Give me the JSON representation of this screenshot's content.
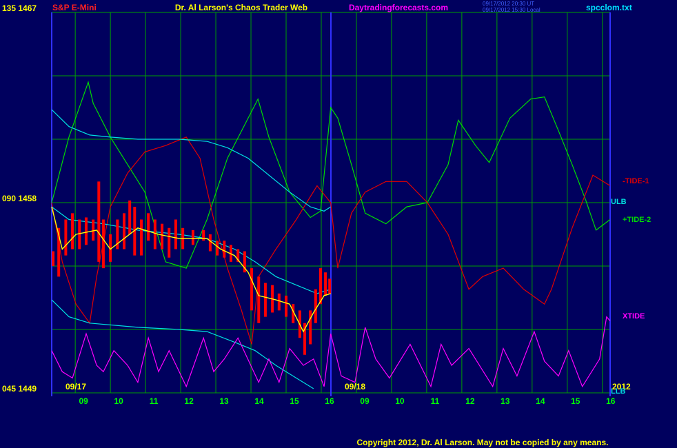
{
  "chart_data": {
    "type": "line",
    "symbol": "S&P E-Mini",
    "title": "Dr. Al Larson's Chaos Trader Web",
    "website": "Daytradingforecasts.com",
    "timestamps": [
      "09/17/2012 20:30 UT",
      "09/17/2012 15:30 Local"
    ],
    "file": "spcclom.txt",
    "day_labels": [
      "09/17",
      "09/18",
      "2012"
    ],
    "copyright": "Copyright 2012, Dr. Al Larson. May not be copied by any means.",
    "xlim": [
      -0.67,
      15.22
    ],
    "xticks": [
      {
        "value": 0,
        "label": "09"
      },
      {
        "value": 1,
        "label": "10"
      },
      {
        "value": 2,
        "label": "11"
      },
      {
        "value": 3,
        "label": "12"
      },
      {
        "value": 4,
        "label": "13"
      },
      {
        "value": 5,
        "label": "14"
      },
      {
        "value": 6,
        "label": "15"
      },
      {
        "value": 7,
        "label": "16"
      },
      {
        "value": 8,
        "label": "09"
      },
      {
        "value": 9,
        "label": "10"
      },
      {
        "value": 10,
        "label": "11"
      },
      {
        "value": 11,
        "label": "12"
      },
      {
        "value": 12,
        "label": "13"
      },
      {
        "value": 13,
        "label": "14"
      },
      {
        "value": 14,
        "label": "15"
      },
      {
        "value": 15,
        "label": "16"
      }
    ],
    "ylim": [
      1449,
      1467
    ],
    "yticks": [
      {
        "value": 1467,
        "label": "135 1467"
      },
      {
        "value": 1458,
        "label": "090 1458"
      },
      {
        "value": 1449,
        "label": "045 1449"
      }
    ],
    "ygrid": [
      1449,
      1452,
      1455,
      1458,
      1461,
      1464,
      1467
    ],
    "price": {
      "color": "#ff0000",
      "x": [
        -0.63,
        -0.47,
        -0.27,
        -0.08,
        0.12,
        0.31,
        0.51,
        0.67,
        0.8,
        1.0,
        1.2,
        1.39,
        1.55,
        1.69,
        1.88,
        2.08,
        2.27,
        2.47,
        2.67,
        2.86,
        3.06,
        3.35,
        3.65,
        3.84,
        4.04,
        4.24,
        4.43,
        4.63,
        4.82,
        5.02,
        5.22,
        5.41,
        5.61,
        5.8,
        6.0,
        6.2,
        6.39,
        6.53,
        6.69,
        6.84,
        6.98,
        7.12,
        7.24
      ],
      "high": [
        1455.7,
        1456.8,
        1457.2,
        1457.5,
        1457.2,
        1457.3,
        1457.2,
        1459.0,
        1457.2,
        1456.5,
        1457.2,
        1457.5,
        1458.1,
        1457.8,
        1457.2,
        1457.5,
        1457.2,
        1457.0,
        1456.8,
        1457.2,
        1456.8,
        1456.7,
        1456.7,
        1456.5,
        1456.2,
        1456.2,
        1456.0,
        1455.8,
        1455.7,
        1454.9,
        1454.5,
        1454.2,
        1454.1,
        1453.7,
        1453.6,
        1453.2,
        1452.9,
        1452.3,
        1452.9,
        1453.9,
        1454.9,
        1454.7,
        1454.4
      ],
      "low": [
        1455.0,
        1454.5,
        1455.5,
        1455.8,
        1455.8,
        1456.0,
        1456.2,
        1455.2,
        1454.9,
        1455.2,
        1455.8,
        1455.8,
        1456.5,
        1455.5,
        1455.5,
        1456.2,
        1455.8,
        1455.8,
        1455.4,
        1455.8,
        1455.8,
        1456.0,
        1456.2,
        1455.7,
        1455.5,
        1455.4,
        1455.2,
        1455.2,
        1454.7,
        1452.9,
        1452.3,
        1452.6,
        1452.8,
        1452.9,
        1452.6,
        1452.3,
        1451.6,
        1450.8,
        1451.3,
        1452.3,
        1453.2,
        1453.6,
        1453.7
      ]
    },
    "series": [
      {
        "name": "-TIDE-1",
        "color": "#e00000",
        "x": [
          -0.67,
          -0.37,
          0.02,
          0.41,
          0.61,
          1.0,
          1.49,
          1.98,
          2.57,
          3.16,
          3.55,
          3.94,
          4.33,
          4.73,
          5.02,
          5.22,
          5.71,
          6.29,
          6.88,
          7.27,
          7.47,
          7.86,
          8.25,
          8.84,
          9.43,
          10.02,
          10.61,
          11.2,
          11.59,
          12.18,
          12.76,
          13.35,
          13.55,
          14.14,
          14.73,
          15.22
        ],
        "values": [
          1458.0,
          1455.2,
          1453.2,
          1452.3,
          1454.5,
          1457.8,
          1459.4,
          1460.4,
          1460.7,
          1461.1,
          1460.1,
          1457.2,
          1454.9,
          1452.9,
          1451.3,
          1454.5,
          1455.8,
          1457.2,
          1458.8,
          1458.0,
          1454.9,
          1457.5,
          1458.5,
          1459.0,
          1459.0,
          1458.0,
          1456.5,
          1453.9,
          1454.5,
          1454.9,
          1453.9,
          1453.2,
          1453.9,
          1456.8,
          1459.3,
          1458.8
        ]
      },
      {
        "name": "ULB",
        "color": "#00e0e0",
        "x": [
          -0.67,
          -0.18,
          0.41,
          1.0,
          1.78,
          2.96,
          3.75,
          4.33,
          4.92,
          5.51,
          6.1,
          6.69,
          7.08,
          7.27
        ],
        "values": [
          1462.4,
          1461.6,
          1461.2,
          1461.1,
          1461.0,
          1461.0,
          1460.9,
          1460.6,
          1460.1,
          1459.3,
          1458.5,
          1457.8,
          1457.6,
          1457.8
        ]
      },
      {
        "name": "+TIDE-2",
        "color": "#00dd00",
        "x": [
          -0.67,
          -0.18,
          0.37,
          0.51,
          1.0,
          1.49,
          1.98,
          2.57,
          3.16,
          3.75,
          4.33,
          5.2,
          5.51,
          6.1,
          6.69,
          6.98,
          7.27,
          7.47,
          7.86,
          8.25,
          8.84,
          9.43,
          10.02,
          10.61,
          10.9,
          11.39,
          11.78,
          12.37,
          12.96,
          13.35,
          13.75,
          14.14,
          14.53,
          14.82,
          15.22
        ],
        "values": [
          1458.0,
          1461.1,
          1463.7,
          1462.7,
          1461.1,
          1459.8,
          1458.5,
          1455.2,
          1454.9,
          1457.2,
          1460.1,
          1462.9,
          1461.1,
          1458.5,
          1457.3,
          1457.6,
          1462.5,
          1462.0,
          1459.8,
          1457.5,
          1457.0,
          1457.8,
          1458.0,
          1459.8,
          1461.9,
          1460.7,
          1459.9,
          1462.0,
          1462.9,
          1463.0,
          1461.4,
          1459.8,
          1458.1,
          1456.7,
          1457.2
        ]
      },
      {
        "name": "XTIDE",
        "color": "#ff00ff",
        "x": [
          -0.67,
          -0.37,
          -0.08,
          0.31,
          0.61,
          0.8,
          1.1,
          1.49,
          1.78,
          2.08,
          2.37,
          2.67,
          3.16,
          3.65,
          3.94,
          4.24,
          4.63,
          5.22,
          5.51,
          5.8,
          6.1,
          6.49,
          6.78,
          7.08,
          7.27,
          7.57,
          7.96,
          8.25,
          8.55,
          8.94,
          9.53,
          10.12,
          10.41,
          10.71,
          11.2,
          11.88,
          12.18,
          12.57,
          13.06,
          13.35,
          13.75,
          14.04,
          14.43,
          14.92,
          15.12,
          15.22
        ],
        "values": [
          1451.0,
          1450.0,
          1449.7,
          1451.8,
          1450.3,
          1450.0,
          1451.0,
          1450.3,
          1449.5,
          1451.6,
          1450.0,
          1451.0,
          1449.3,
          1451.6,
          1450.0,
          1450.6,
          1451.6,
          1449.5,
          1450.6,
          1449.5,
          1451.1,
          1450.3,
          1450.6,
          1449.3,
          1451.8,
          1449.8,
          1449.5,
          1452.1,
          1450.6,
          1449.7,
          1451.3,
          1449.3,
          1451.3,
          1450.3,
          1451.1,
          1449.3,
          1451.1,
          1449.8,
          1451.9,
          1450.5,
          1449.8,
          1451.0,
          1449.3,
          1450.6,
          1452.6,
          1452.4
        ]
      },
      {
        "name": "LLB",
        "color": "#00e0e0",
        "x": [
          -0.67,
          -0.18,
          0.41,
          1.78,
          2.96,
          3.75,
          4.53,
          5.12,
          5.71,
          6.29,
          6.78
        ],
        "values": [
          1453.4,
          1452.6,
          1452.3,
          1452.1,
          1452.0,
          1451.9,
          1451.4,
          1451.0,
          1450.3,
          1449.7,
          1449.2
        ]
      },
      {
        "color": "#00e0e0",
        "x": [
          -0.67,
          -0.18,
          0.8,
          1.78,
          2.96,
          3.75,
          4.53,
          5.12,
          5.71,
          6.29,
          6.88,
          7.27
        ],
        "values": [
          1457.8,
          1457.2,
          1457.0,
          1456.7,
          1456.5,
          1456.3,
          1455.8,
          1455.2,
          1454.5,
          1454.1,
          1453.7,
          1453.9
        ]
      },
      {
        "color": "#ffff00",
        "x": [
          -0.67,
          -0.37,
          0.02,
          0.61,
          1.0,
          1.39,
          1.78,
          2.37,
          2.96,
          3.75,
          4.14,
          4.53,
          4.92,
          5.22,
          5.71,
          6.1,
          6.49,
          6.78,
          7.08,
          7.27
        ],
        "values": [
          1457.8,
          1455.8,
          1456.5,
          1456.7,
          1455.8,
          1456.3,
          1456.8,
          1456.5,
          1456.3,
          1456.3,
          1455.8,
          1455.5,
          1454.7,
          1453.6,
          1453.4,
          1453.2,
          1451.9,
          1452.8,
          1453.6,
          1453.7
        ]
      }
    ]
  }
}
